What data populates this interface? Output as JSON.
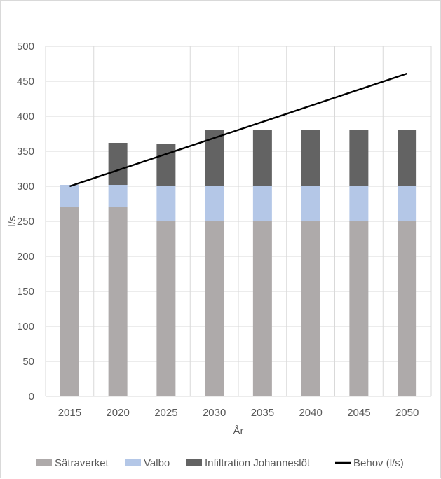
{
  "chart_data": {
    "type": "bar",
    "stacked": true,
    "categories": [
      "2015",
      "2020",
      "2025",
      "2030",
      "2035",
      "2040",
      "2045",
      "2050"
    ],
    "series": [
      {
        "name": "Sätraverket",
        "kind": "bar",
        "color": "#aeaaaa",
        "values": [
          270,
          270,
          250,
          250,
          250,
          250,
          250,
          250
        ]
      },
      {
        "name": "Valbo",
        "kind": "bar",
        "color": "#b4c7e7",
        "values": [
          32,
          32,
          50,
          50,
          50,
          50,
          50,
          50
        ]
      },
      {
        "name": "Infiltration Johanneslöt",
        "kind": "bar",
        "color": "#636363",
        "values": [
          0,
          60,
          60,
          80,
          80,
          80,
          80,
          80
        ]
      },
      {
        "name": "Behov (l/s)",
        "kind": "line",
        "color": "#000000",
        "values": [
          300,
          323,
          346,
          369,
          392,
          415,
          438,
          461
        ]
      }
    ],
    "xlabel": "År",
    "ylabel": "l/s",
    "ylim": [
      0,
      500
    ],
    "yticks": [
      0,
      50,
      100,
      150,
      200,
      250,
      300,
      350,
      400,
      450,
      500
    ],
    "grid": true,
    "legend_position": "bottom"
  }
}
